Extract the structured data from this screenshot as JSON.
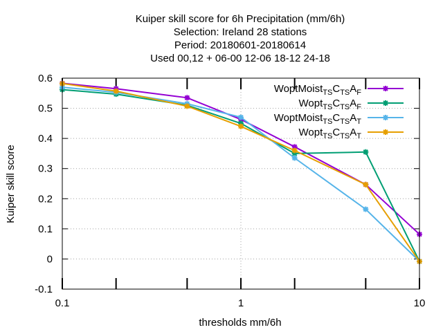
{
  "chart_data": {
    "type": "line",
    "title_lines": [
      "Kuiper skill score  for 6h Precipitation (mm/6h)",
      "Selection: Ireland      28 stations",
      "Period: 20180601-20180614",
      "Used  00,12  + 06-00 12-06 18-12 24-18"
    ],
    "xlabel": "thresholds mm/6h",
    "ylabel": "Kuiper skill score",
    "x_scale": "log",
    "xlim": [
      0.1,
      10
    ],
    "ylim": [
      -0.1,
      0.6
    ],
    "x_ticks": [
      {
        "value": 0.1,
        "label": "0.1"
      },
      {
        "value": 1,
        "label": "1"
      },
      {
        "value": 10,
        "label": "10"
      }
    ],
    "x_minor_ticks": [
      0.2,
      0.5,
      2,
      5
    ],
    "y_ticks": [
      {
        "value": -0.1,
        "label": "-0.1"
      },
      {
        "value": 0,
        "label": "0"
      },
      {
        "value": 0.1,
        "label": "0.1"
      },
      {
        "value": 0.2,
        "label": "0.2"
      },
      {
        "value": 0.3,
        "label": "0.3"
      },
      {
        "value": 0.4,
        "label": "0.4"
      },
      {
        "value": 0.5,
        "label": "0.5"
      },
      {
        "value": 0.6,
        "label": "0.6"
      }
    ],
    "grid": true,
    "legend_position": "top-right",
    "x": [
      0.1,
      0.2,
      0.5,
      1,
      2,
      5,
      10
    ],
    "series": [
      {
        "name": "WoptMoist",
        "sub1": "TS",
        "mid1": "C",
        "sub2": "TS",
        "mid2": "A",
        "sub3": "F",
        "color": "#9400d3",
        "values": [
          0.583,
          0.565,
          0.535,
          0.463,
          0.372,
          0.247,
          0.082
        ]
      },
      {
        "name": "Wopt",
        "sub1": "TS",
        "mid1": "C",
        "sub2": "TS",
        "mid2": "A",
        "sub3": "F",
        "color": "#009e73",
        "values": [
          0.562,
          0.547,
          0.51,
          0.45,
          0.35,
          0.355,
          -0.008
        ]
      },
      {
        "name": "WoptMoist",
        "sub1": "TS",
        "mid1": "C",
        "sub2": "TS",
        "mid2": "A",
        "sub3": "T",
        "color": "#56b4e9",
        "values": [
          0.57,
          0.553,
          0.515,
          0.47,
          0.335,
          0.165,
          -0.008
        ]
      },
      {
        "name": "Wopt",
        "sub1": "TS",
        "mid1": "C",
        "sub2": "TS",
        "mid2": "A",
        "sub3": "T",
        "color": "#e69f00",
        "values": [
          0.582,
          0.557,
          0.507,
          0.44,
          0.36,
          0.247,
          -0.008
        ]
      }
    ]
  }
}
